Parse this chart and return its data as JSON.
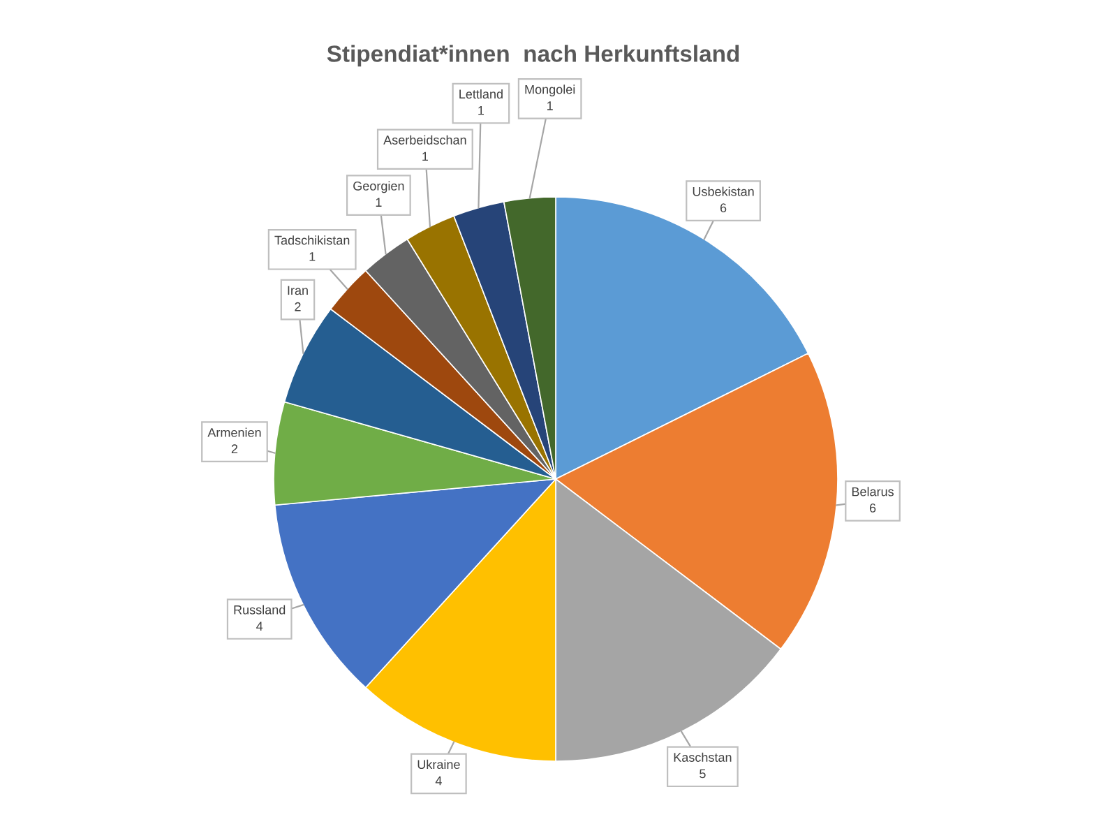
{
  "chart_data": {
    "type": "pie",
    "title": "Stipendiat*innen  nach Herkunftsland",
    "categories": [
      "Usbekistan",
      "Belarus",
      "Kaschstan",
      "Ukraine",
      "Russland",
      "Armenien",
      "Iran",
      "Tadschikistan",
      "Georgien",
      "Aserbeidschan",
      "Lettland",
      "Mongolei"
    ],
    "values": [
      6,
      6,
      5,
      4,
      4,
      2,
      2,
      1,
      1,
      1,
      1,
      1
    ],
    "colors": [
      "#5b9bd5",
      "#ed7d31",
      "#a5a5a5",
      "#ffc000",
      "#4472c4",
      "#70ad47",
      "#255e91",
      "#9e480e",
      "#636363",
      "#997300",
      "#264478",
      "#43682b"
    ],
    "data_labels": true
  }
}
